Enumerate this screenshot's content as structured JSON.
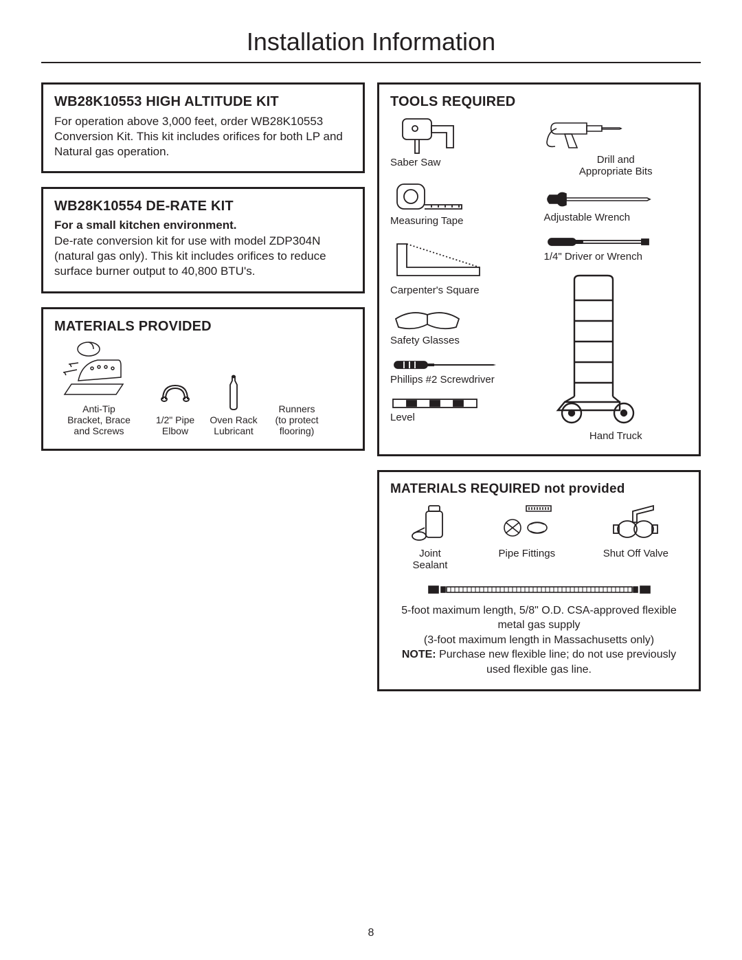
{
  "page_title": "Installation Information",
  "page_number": "8",
  "left": {
    "kit1": {
      "heading": "WB28K10553 HIGH ALTITUDE KIT",
      "body": "For operation above 3,000 feet, order WB28K10553 Conversion Kit. This kit includes orifices for both LP and Natural gas operation."
    },
    "kit2": {
      "heading": "WB28K10554 DE-RATE KIT",
      "sub_bold": "For a small kitchen environment.",
      "body": "De-rate conversion kit for use with model ZDP304N (natural gas only). This kit includes orifices to reduce surface burner output to 40,800 BTU's."
    },
    "materials_provided": {
      "heading": "MATERIALS PROVIDED",
      "items": [
        {
          "label": "Anti-Tip\nBracket, Brace\nand Screws",
          "icon": "anti-tip-bracket-icon"
        },
        {
          "label": "1/2\" Pipe\nElbow",
          "icon": "pipe-elbow-icon"
        },
        {
          "label": "Oven Rack\nLubricant",
          "icon": "lubricant-bottle-icon"
        },
        {
          "label": "Runners\n(to protect\nflooring)",
          "icon": "runners-icon"
        }
      ]
    }
  },
  "right": {
    "tools_required": {
      "heading": "TOOLS REQUIRED",
      "left_col": [
        {
          "label": "Saber Saw",
          "icon": "saber-saw-icon"
        },
        {
          "label": "Measuring Tape",
          "icon": "measuring-tape-icon"
        },
        {
          "label": "Carpenter's Square",
          "icon": "carpenter-square-icon"
        },
        {
          "label": "Safety Glasses",
          "icon": "safety-glasses-icon"
        },
        {
          "label": "Phillips #2 Screwdriver",
          "icon": "phillips-screwdriver-icon"
        },
        {
          "label": "Level",
          "icon": "level-icon"
        }
      ],
      "right_col": [
        {
          "label": "Drill and\nAppropriate Bits",
          "icon": "drill-icon"
        },
        {
          "label": "Adjustable Wrench",
          "icon": "adjustable-wrench-icon"
        },
        {
          "label": "1/4\" Driver or Wrench",
          "icon": "driver-icon"
        },
        {
          "label": "Hand Truck",
          "icon": "hand-truck-icon",
          "tall": true
        }
      ]
    },
    "materials_required": {
      "heading": "MATERIALS REQUIRED not provided",
      "row": [
        {
          "label": "Joint\nSealant",
          "icon": "joint-sealant-icon"
        },
        {
          "label": "Pipe Fittings",
          "icon": "pipe-fittings-icon"
        },
        {
          "label": "Shut Off Valve",
          "icon": "shut-off-valve-icon"
        }
      ],
      "flex_line_icon": "flexible-gas-line-icon",
      "note_lines": [
        "5-foot maximum length, 5/8\" O.D. CSA-approved flexible metal gas supply",
        "(3-foot maximum length in Massachusetts only)"
      ],
      "note_bold_label": "NOTE:",
      "note_after_bold": " Purchase new flexible line; do not use previously used flexible gas line."
    }
  },
  "colors": {
    "text": "#231f20",
    "border": "#231f20",
    "background": "#ffffff"
  }
}
